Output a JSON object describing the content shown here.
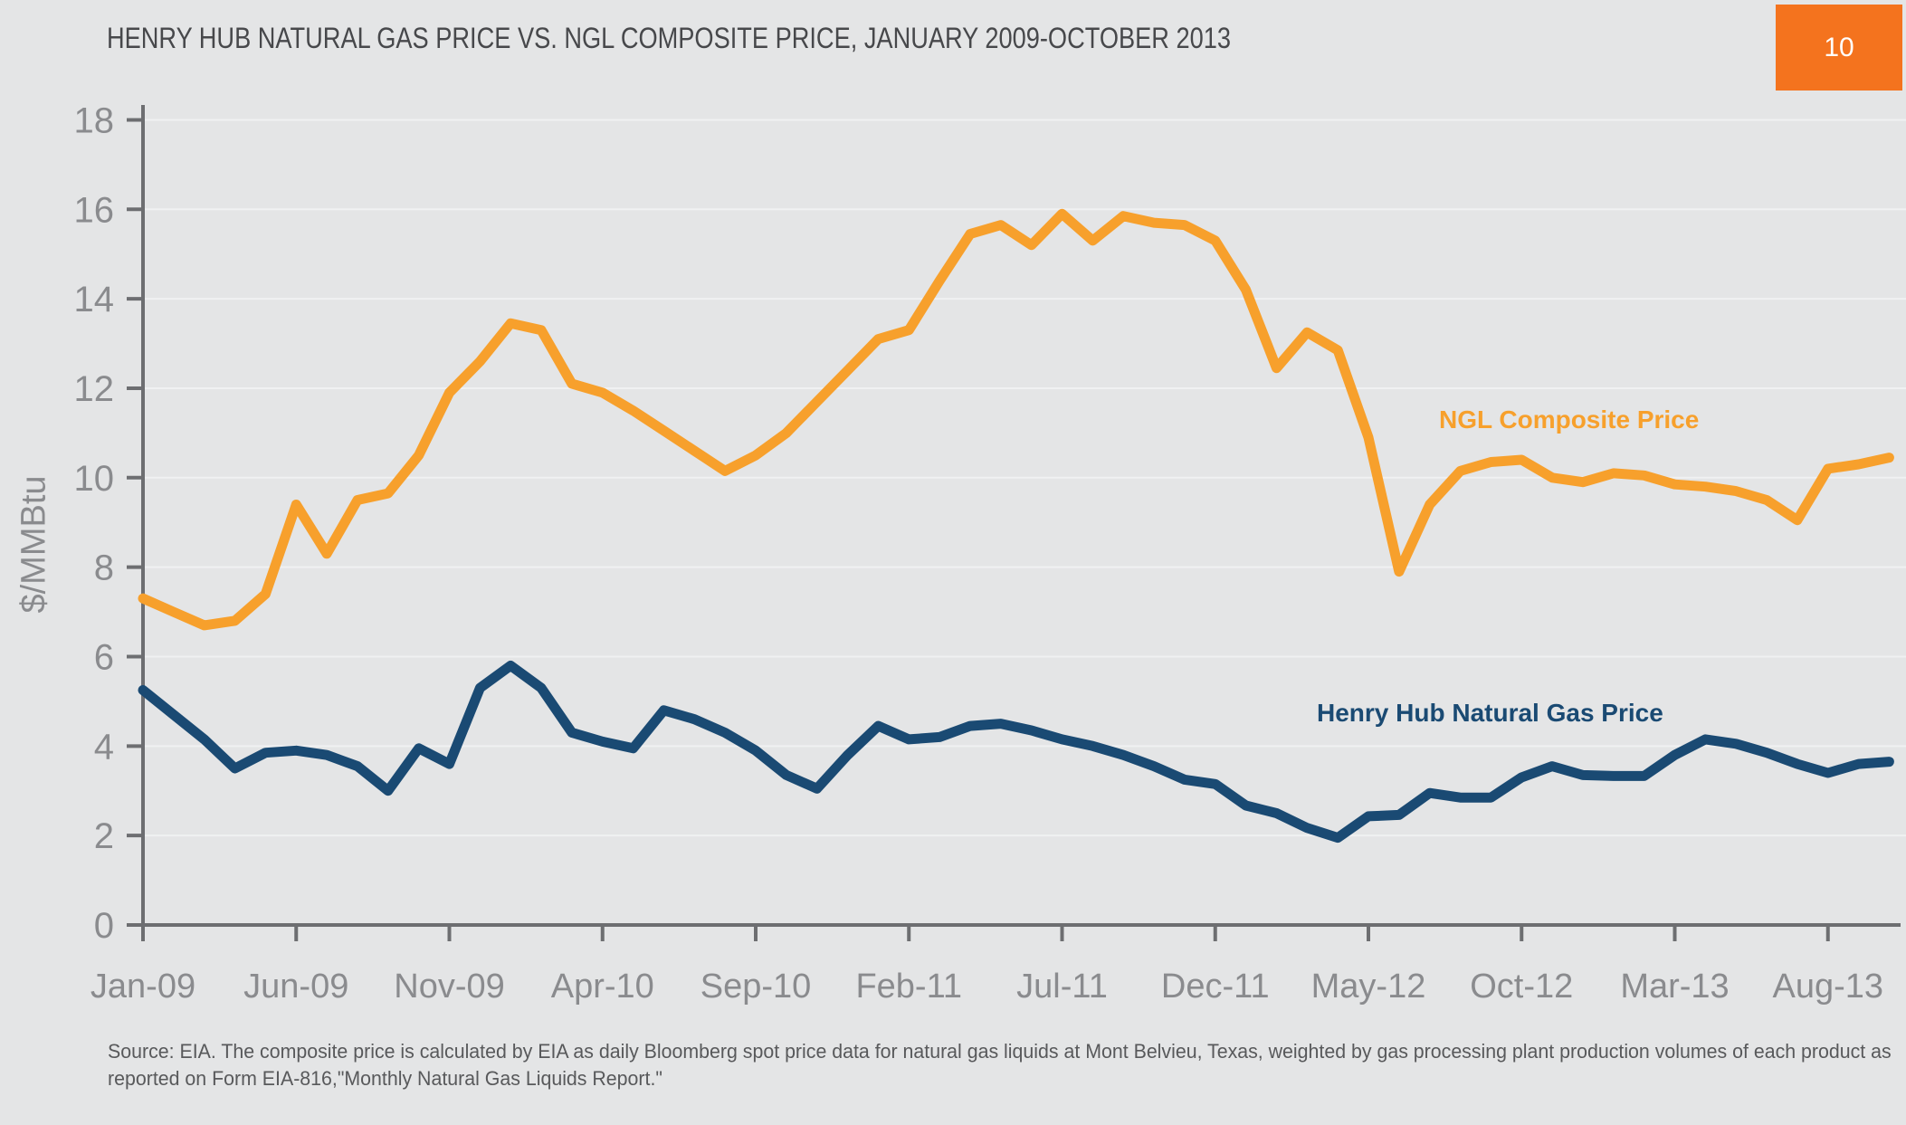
{
  "title": "HENRY HUB NATURAL GAS PRICE VS. NGL COMPOSITE PRICE, JANUARY 2009-OCTOBER 2013",
  "page_number": "10",
  "colors": {
    "background": "#E4E5E6",
    "badge": "#F4731E",
    "ngl_orange": "#F7A02C",
    "henry_hub_blue": "#1A4A73",
    "axis": "#6D6E71",
    "tick_label": "#8A8B8E",
    "gridline": "#F0F1F2",
    "title_text": "#47484B",
    "source_text": "#58595B"
  },
  "y_axis": {
    "title": "$/MMBtu"
  },
  "series_labels": {
    "ngl": "NGL Composite Price",
    "henry_hub": "Henry Hub Natural Gas Price"
  },
  "source_lines": [
    "Source: EIA. The composite price is calculated by EIA as  daily Bloomberg spot price data for natural gas liquids at Mont Belvieu, Texas, weighted by gas processing plant production volumes of each product as",
    "reported on Form EIA-816,\"Monthly Natural Gas Liquids Report.\""
  ],
  "chart_data": {
    "type": "line",
    "title": "HENRY HUB NATURAL GAS PRICE VS. NGL COMPOSITE PRICE, JANUARY 2009-OCTOBER 2013",
    "ylabel": "$/MMBtu",
    "ylim": [
      0,
      18
    ],
    "y_ticks": [
      0,
      2,
      4,
      6,
      8,
      10,
      12,
      14,
      16,
      18
    ],
    "grid": "horizontal",
    "legend_position": "inline-labels",
    "x_tick_every": 5,
    "x_tick_labels": [
      "Jan-09",
      "Jun-09",
      "Nov-09",
      "Apr-10",
      "Sep-10",
      "Feb-11",
      "Jul-11",
      "Dec-11",
      "May-12",
      "Oct-12",
      "Mar-13",
      "Aug-13"
    ],
    "x": [
      "Jan-09",
      "Feb-09",
      "Mar-09",
      "Apr-09",
      "May-09",
      "Jun-09",
      "Jul-09",
      "Aug-09",
      "Sep-09",
      "Oct-09",
      "Nov-09",
      "Dec-09",
      "Jan-10",
      "Feb-10",
      "Mar-10",
      "Apr-10",
      "May-10",
      "Jun-10",
      "Jul-10",
      "Aug-10",
      "Sep-10",
      "Oct-10",
      "Nov-10",
      "Dec-10",
      "Jan-11",
      "Feb-11",
      "Mar-11",
      "Apr-11",
      "May-11",
      "Jun-11",
      "Jul-11",
      "Aug-11",
      "Sep-11",
      "Oct-11",
      "Nov-11",
      "Dec-11",
      "Jan-12",
      "Feb-12",
      "Mar-12",
      "Apr-12",
      "May-12",
      "Jun-12",
      "Jul-12",
      "Aug-12",
      "Sep-12",
      "Oct-12",
      "Nov-12",
      "Dec-12",
      "Jan-13",
      "Feb-13",
      "Mar-13",
      "Apr-13",
      "May-13",
      "Jun-13",
      "Jul-13",
      "Aug-13",
      "Sep-13",
      "Oct-13"
    ],
    "series": [
      {
        "name": "NGL Composite Price",
        "color": "#F7A02C",
        "values": [
          7.3,
          7.0,
          6.7,
          6.8,
          7.4,
          9.4,
          8.3,
          9.5,
          9.65,
          10.5,
          11.9,
          12.6,
          13.45,
          13.3,
          12.1,
          11.9,
          11.5,
          11.05,
          10.6,
          10.15,
          10.5,
          11.0,
          11.7,
          12.4,
          13.1,
          13.3,
          14.4,
          15.45,
          15.65,
          15.2,
          15.9,
          15.3,
          15.85,
          15.7,
          15.65,
          15.3,
          14.2,
          12.45,
          13.25,
          12.85,
          10.9,
          7.9,
          9.4,
          10.15,
          10.35,
          10.4,
          10.0,
          9.9,
          10.1,
          10.05,
          9.85,
          9.8,
          9.7,
          9.5,
          9.05,
          10.2,
          10.3,
          10.45
        ]
      },
      {
        "name": "Henry Hub Natural Gas Price",
        "color": "#1A4A73",
        "values": [
          5.25,
          4.7,
          4.15,
          3.5,
          3.85,
          3.9,
          3.8,
          3.55,
          3.0,
          3.95,
          3.6,
          5.3,
          5.8,
          5.3,
          4.3,
          4.1,
          3.95,
          4.8,
          4.6,
          4.3,
          3.9,
          3.35,
          3.05,
          3.8,
          4.45,
          4.15,
          4.2,
          4.45,
          4.5,
          4.35,
          4.15,
          4.0,
          3.8,
          3.55,
          3.25,
          3.15,
          2.67,
          2.5,
          2.17,
          1.95,
          2.43,
          2.46,
          2.95,
          2.85,
          2.85,
          3.3,
          3.55,
          3.35,
          3.33,
          3.33,
          3.8,
          4.15,
          4.05,
          3.85,
          3.6,
          3.4,
          3.6,
          3.65
        ]
      }
    ]
  }
}
